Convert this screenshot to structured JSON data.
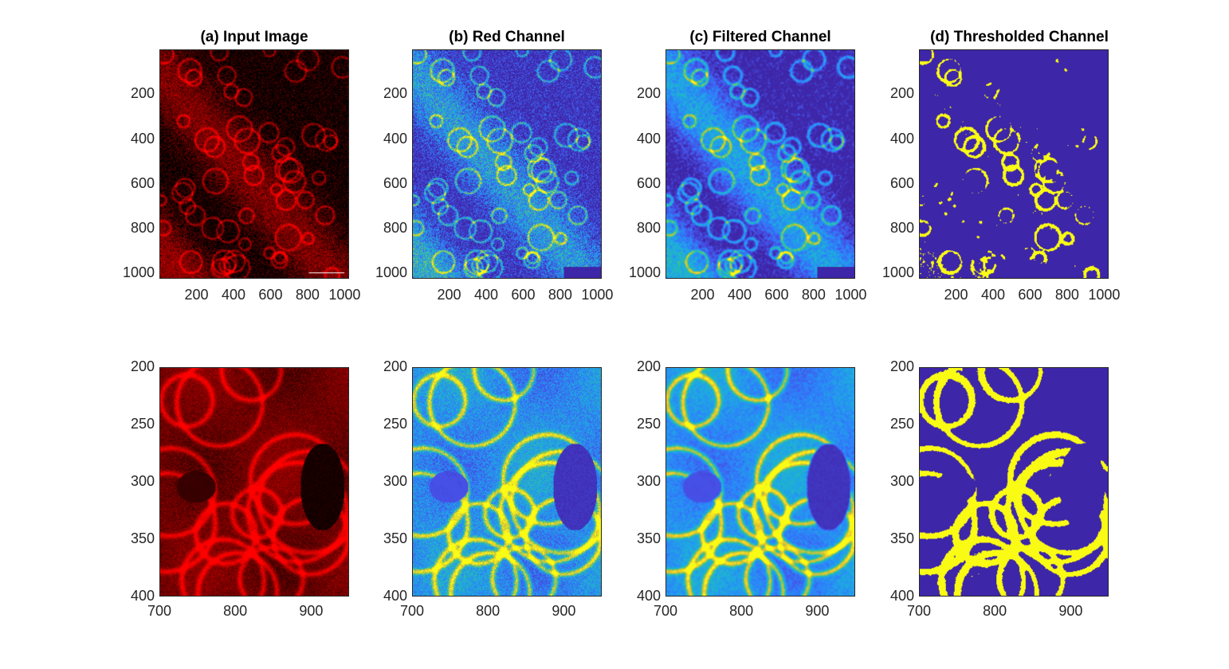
{
  "figure": {
    "titles": [
      "(a) Input Image",
      "(b) Red Channel",
      "(c) Filtered Channel",
      "(d) Thresholded Channel"
    ],
    "top_row": {
      "y_ticks": [
        "200",
        "400",
        "600",
        "800",
        "1000"
      ],
      "x_ticks": [
        "200",
        "400",
        "600",
        "800",
        "1000"
      ]
    },
    "bottom_row": {
      "y_ticks": [
        "200",
        "250",
        "300",
        "350",
        "400"
      ],
      "x_ticks": [
        "700",
        "800",
        "900"
      ]
    },
    "colors": {
      "red_channel": "#ff0000",
      "parula_low": "#3e26a8",
      "parula_mid": "#2f9cf0",
      "parula_high": "#f9fb15",
      "background": "#000000"
    }
  }
}
